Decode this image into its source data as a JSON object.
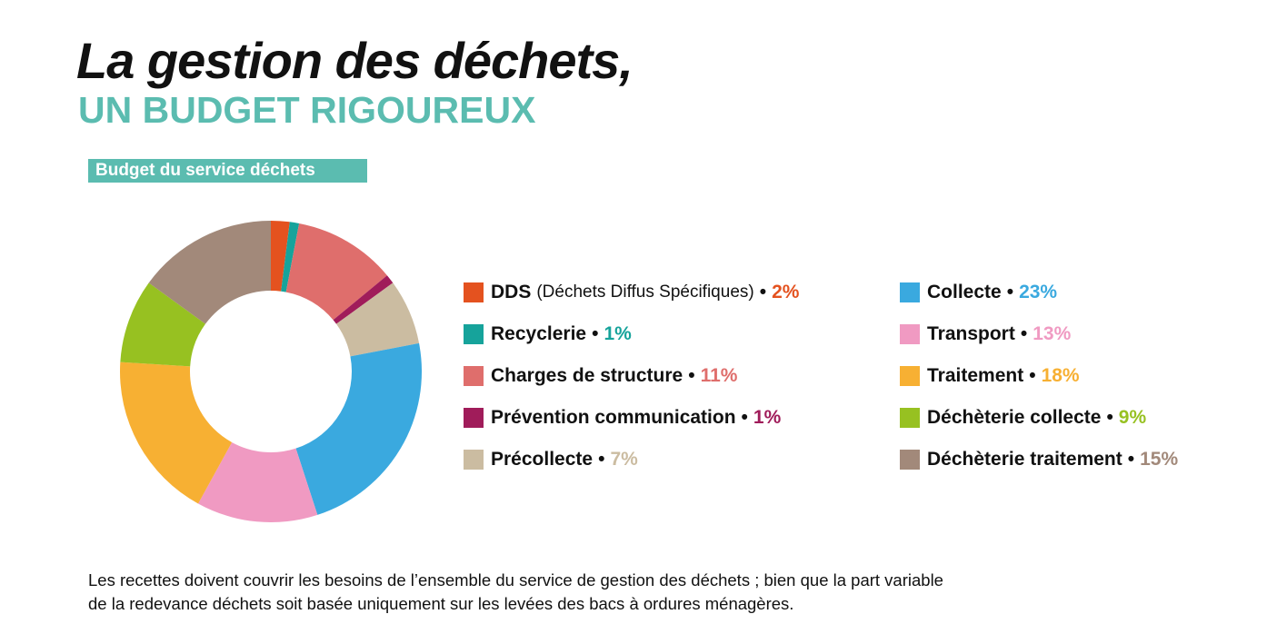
{
  "header": {
    "title": "La gestion des déchets,",
    "subtitle": "UN BUDGET RIGOUREUX"
  },
  "chart_data": {
    "type": "pie",
    "style": "donut",
    "title": "Budget du service déchets",
    "slices": [
      {
        "label": "DDS",
        "note": "(Déchets Diffus Spécifiques)",
        "value": 2,
        "value_label": "2%",
        "color": "#e4521f"
      },
      {
        "label": "Recyclerie",
        "value": 1,
        "value_label": "1%",
        "color": "#16a39b"
      },
      {
        "label": "Charges de structure",
        "value": 11,
        "value_label": "11%",
        "color": "#df6e6c"
      },
      {
        "label": "Prévention communication",
        "value": 1,
        "value_label": "1%",
        "color": "#a01c5a"
      },
      {
        "label": "Précollecte",
        "value": 7,
        "value_label": "7%",
        "color": "#cbbca1"
      },
      {
        "label": "Collecte",
        "value": 23,
        "value_label": "23%",
        "color": "#3aa9df"
      },
      {
        "label": "Transport",
        "value": 13,
        "value_label": "13%",
        "color": "#f09ac2"
      },
      {
        "label": "Traitement",
        "value": 18,
        "value_label": "18%",
        "color": "#f7b033"
      },
      {
        "label": "Déchèterie collecte",
        "value": 9,
        "value_label": "9%",
        "color": "#97c121"
      },
      {
        "label": "Déchèterie traitement",
        "value": 15,
        "value_label": "15%",
        "color": "#a2897a"
      }
    ],
    "legend": "right"
  },
  "footer": {
    "text_line1": "Les recettes doivent couvrir les besoins de l’ensemble du service de gestion des déchets ; bien que la part variable",
    "text_line2": "de la redevance déchets soit basée uniquement sur les levées des bacs à ordures ménagères."
  }
}
